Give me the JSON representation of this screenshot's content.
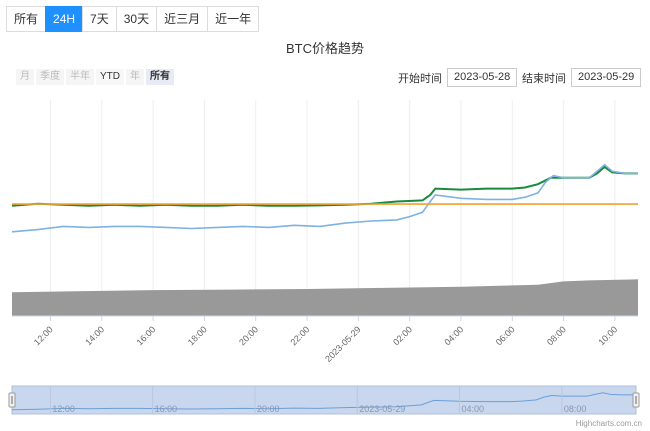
{
  "tabs": [
    {
      "label": "所有",
      "active": false
    },
    {
      "label": "24H",
      "active": true
    },
    {
      "label": "7天",
      "active": false
    },
    {
      "label": "30天",
      "active": false
    },
    {
      "label": "近三月",
      "active": false
    },
    {
      "label": "近一年",
      "active": false
    }
  ],
  "chart": {
    "title": "BTC价格趋势",
    "zoom_buttons": [
      "月",
      "季度",
      "半年",
      "YTD",
      "年",
      "所有"
    ],
    "zoom_selected": "所有",
    "range": {
      "start_label": "开始时间",
      "start_value": "2023-05-28",
      "end_label": "结束时间",
      "end_value": "2023-05-29"
    },
    "credit": "Highcharts.com.cn"
  },
  "colors": {
    "accent": "#1e90ff",
    "green_series": "#1a8a3c",
    "blue_series": "#7fb2e0",
    "orange_line": "#f0a030",
    "volume": "#999999",
    "navigator_fill": "#c9d7ee"
  },
  "chart_data": {
    "type": "line",
    "x_ticks": [
      "12:00",
      "14:00",
      "16:00",
      "18:00",
      "20:00",
      "22:00",
      "2023-05-29",
      "02:00",
      "04:00",
      "06:00",
      "08:00",
      "10:00"
    ],
    "navigator_ticks": [
      "12:00",
      "16:00",
      "20:00",
      "2023-05-29",
      "04:00",
      "08:00"
    ],
    "x_range_hours": [
      10.5,
      34.9
    ],
    "y_range": [
      0,
      1
    ],
    "series": [
      {
        "type": "line",
        "color": "#1a8a3c",
        "points": [
          [
            10.5,
            0.51
          ],
          [
            11.5,
            0.52
          ],
          [
            12.5,
            0.515
          ],
          [
            13.5,
            0.51
          ],
          [
            14.5,
            0.515
          ],
          [
            15.5,
            0.51
          ],
          [
            16.5,
            0.515
          ],
          [
            17.5,
            0.51
          ],
          [
            18.5,
            0.51
          ],
          [
            19.5,
            0.515
          ],
          [
            20.5,
            0.51
          ],
          [
            21.5,
            0.51
          ],
          [
            22.5,
            0.512
          ],
          [
            23.5,
            0.515
          ],
          [
            24.5,
            0.52
          ],
          [
            25.5,
            0.53
          ],
          [
            26.5,
            0.535
          ],
          [
            26.8,
            0.56
          ],
          [
            27.0,
            0.59
          ],
          [
            28,
            0.585
          ],
          [
            29,
            0.59
          ],
          [
            30,
            0.59
          ],
          [
            30.5,
            0.595
          ],
          [
            31,
            0.61
          ],
          [
            31.5,
            0.64
          ],
          [
            32,
            0.64
          ],
          [
            33,
            0.64
          ],
          [
            33.3,
            0.66
          ],
          [
            33.6,
            0.69
          ],
          [
            33.9,
            0.665
          ],
          [
            34.4,
            0.66
          ],
          [
            34.9,
            0.66
          ]
        ]
      },
      {
        "type": "line",
        "color": "#7fb2e0",
        "points": [
          [
            10.5,
            0.39
          ],
          [
            11.5,
            0.4
          ],
          [
            12.5,
            0.415
          ],
          [
            13.5,
            0.41
          ],
          [
            14.5,
            0.415
          ],
          [
            15.5,
            0.415
          ],
          [
            16.5,
            0.41
          ],
          [
            17.5,
            0.405
          ],
          [
            18.5,
            0.41
          ],
          [
            19.5,
            0.415
          ],
          [
            20.5,
            0.41
          ],
          [
            21.5,
            0.42
          ],
          [
            22.5,
            0.415
          ],
          [
            23.5,
            0.43
          ],
          [
            24.5,
            0.44
          ],
          [
            25.5,
            0.445
          ],
          [
            26,
            0.46
          ],
          [
            26.5,
            0.48
          ],
          [
            26.8,
            0.53
          ],
          [
            27.0,
            0.56
          ],
          [
            28,
            0.545
          ],
          [
            29,
            0.54
          ],
          [
            30,
            0.54
          ],
          [
            30.5,
            0.55
          ],
          [
            31,
            0.57
          ],
          [
            31.3,
            0.62
          ],
          [
            31.6,
            0.65
          ],
          [
            32,
            0.64
          ],
          [
            33,
            0.64
          ],
          [
            33.3,
            0.67
          ],
          [
            33.6,
            0.7
          ],
          [
            33.9,
            0.67
          ],
          [
            34.4,
            0.66
          ],
          [
            34.9,
            0.66
          ]
        ]
      },
      {
        "type": "line",
        "color": "#f0a030",
        "points": [
          [
            10.5,
            0.518
          ],
          [
            34.9,
            0.518
          ]
        ]
      },
      {
        "type": "area",
        "color": "#999999",
        "points": [
          [
            10.5,
            0.11
          ],
          [
            13,
            0.115
          ],
          [
            16,
            0.12
          ],
          [
            19,
            0.122
          ],
          [
            22,
            0.125
          ],
          [
            25,
            0.13
          ],
          [
            28,
            0.135
          ],
          [
            31,
            0.145
          ],
          [
            32,
            0.16
          ],
          [
            33,
            0.165
          ],
          [
            34.9,
            0.17
          ]
        ]
      }
    ]
  }
}
